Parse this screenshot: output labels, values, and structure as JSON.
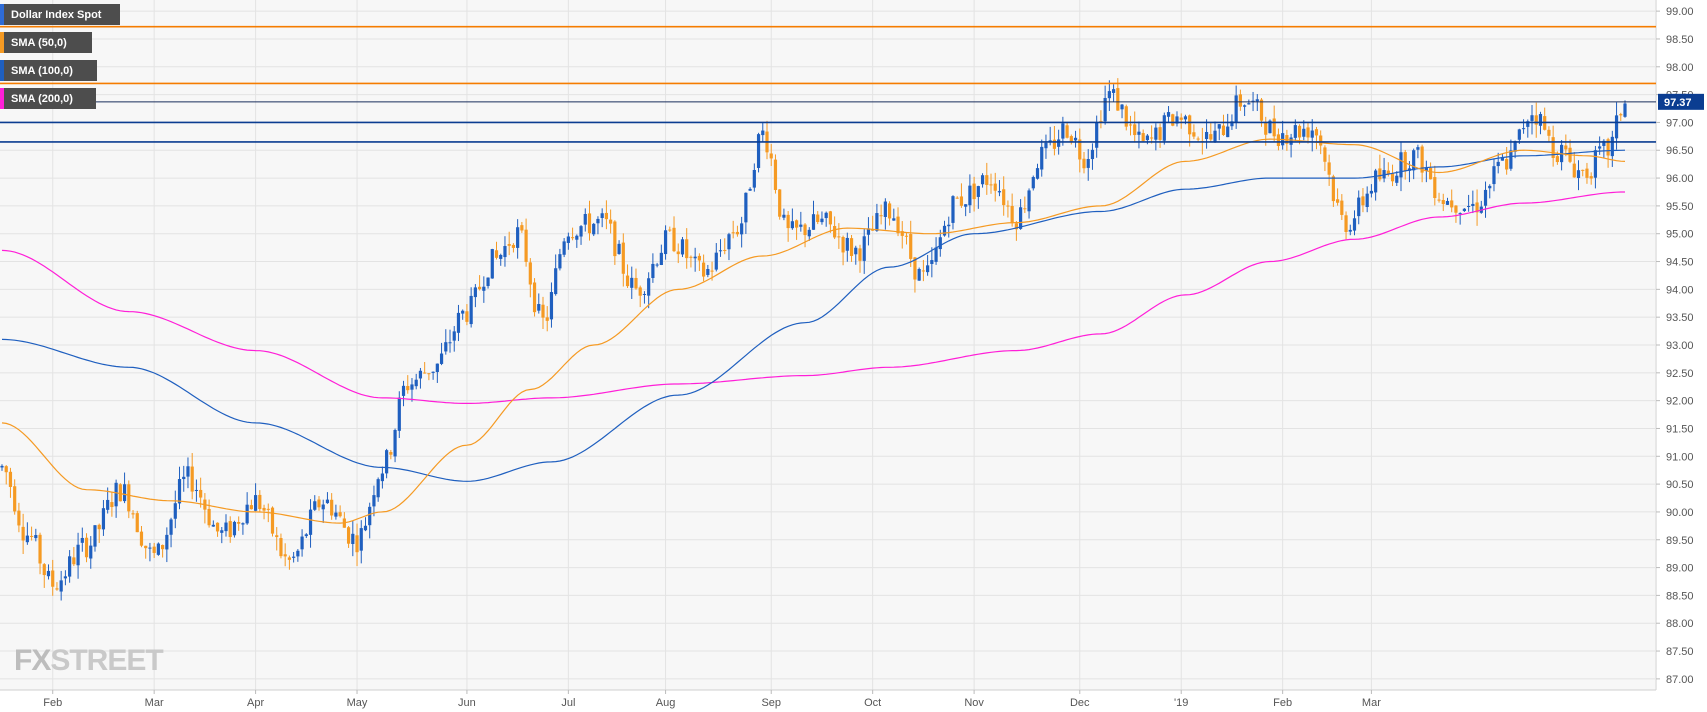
{
  "legend": {
    "series": [
      {
        "label": "Dollar Index Spot",
        "color": "#1f5fbf"
      },
      {
        "label": "SMA (50,0)",
        "color": "#f59a23"
      },
      {
        "label": "SMA (100,0)",
        "color": "#1f5fbf"
      },
      {
        "label": "SMA (200,0)",
        "color": "#ff1fd8"
      }
    ]
  },
  "watermark": {
    "fx": "FX",
    "street": "STREET"
  },
  "colors": {
    "bull": "#1f5fbf",
    "bear": "#f59a23",
    "sma50": "#f59a23",
    "sma100": "#1f5fbf",
    "sma200": "#ff1fd8",
    "hline_orange": "#f57c00",
    "hline_blue": "#0b3d91",
    "grid": "#e3e3e3",
    "plot_bg": "#f7f7f7",
    "price_label_bg": "#0b3d91"
  },
  "chart_data": {
    "type": "candlestick",
    "title": "",
    "ylim": [
      86.8,
      99.2
    ],
    "y_ticks": [
      "99.00",
      "98.50",
      "98.00",
      "97.50",
      "97.00",
      "96.50",
      "96.00",
      "95.50",
      "95.00",
      "94.50",
      "94.00",
      "93.50",
      "93.00",
      "92.50",
      "92.00",
      "91.50",
      "91.00",
      "90.50",
      "90.00",
      "89.50",
      "89.00",
      "88.50",
      "88.00",
      "87.50",
      "87.00"
    ],
    "x_ticks": [
      "Feb",
      "Mar",
      "Apr",
      "May",
      "Jun",
      "Jul",
      "Aug",
      "Sep",
      "Oct",
      "Nov",
      "Dec",
      "'19",
      "Feb",
      "Mar"
    ],
    "grid": true,
    "last_price": "97.37",
    "horizontal_levels": [
      {
        "value": 98.72,
        "color": "orange"
      },
      {
        "value": 97.7,
        "color": "orange"
      },
      {
        "value": 97.37,
        "color": "dark"
      },
      {
        "value": 97.0,
        "color": "blue"
      },
      {
        "value": 96.65,
        "color": "blue"
      }
    ],
    "price_anchors": [
      [
        0,
        90.8
      ],
      [
        6,
        89.6
      ],
      [
        12,
        88.7
      ],
      [
        20,
        89.4
      ],
      [
        28,
        90.4
      ],
      [
        36,
        89.2
      ],
      [
        44,
        90.6
      ],
      [
        52,
        89.6
      ],
      [
        60,
        90.2
      ],
      [
        68,
        89.1
      ],
      [
        76,
        90.2
      ],
      [
        84,
        89.5
      ],
      [
        90,
        90.8
      ],
      [
        96,
        92.3
      ],
      [
        102,
        92.6
      ],
      [
        110,
        93.6
      ],
      [
        116,
        94.5
      ],
      [
        122,
        95.0
      ],
      [
        128,
        93.4
      ],
      [
        134,
        95.1
      ],
      [
        142,
        95.2
      ],
      [
        150,
        94.0
      ],
      [
        158,
        94.9
      ],
      [
        166,
        94.3
      ],
      [
        174,
        95.1
      ],
      [
        180,
        96.8
      ],
      [
        186,
        95.0
      ],
      [
        194,
        95.2
      ],
      [
        202,
        94.7
      ],
      [
        210,
        95.4
      ],
      [
        218,
        94.2
      ],
      [
        226,
        95.6
      ],
      [
        234,
        96.0
      ],
      [
        240,
        95.3
      ],
      [
        246,
        96.4
      ],
      [
        252,
        96.9
      ],
      [
        256,
        96.4
      ],
      [
        262,
        97.5
      ],
      [
        270,
        96.6
      ],
      [
        278,
        97.1
      ],
      [
        286,
        96.7
      ],
      [
        294,
        97.4
      ],
      [
        302,
        96.8
      ],
      [
        310,
        96.9
      ],
      [
        318,
        95.2
      ],
      [
        326,
        96.0
      ],
      [
        334,
        96.4
      ],
      [
        342,
        95.6
      ],
      [
        348,
        95.5
      ],
      [
        356,
        96.3
      ],
      [
        362,
        97.2
      ],
      [
        368,
        96.5
      ],
      [
        374,
        96.1
      ],
      [
        380,
        96.5
      ],
      [
        384,
        97.37
      ]
    ],
    "sma50_anchors": [
      [
        0,
        91.6
      ],
      [
        20,
        90.4
      ],
      [
        40,
        90.2
      ],
      [
        60,
        90.0
      ],
      [
        80,
        89.8
      ],
      [
        90,
        90.0
      ],
      [
        110,
        91.2
      ],
      [
        125,
        92.2
      ],
      [
        140,
        93.0
      ],
      [
        160,
        94.0
      ],
      [
        180,
        94.6
      ],
      [
        200,
        95.1
      ],
      [
        220,
        95.0
      ],
      [
        240,
        95.2
      ],
      [
        260,
        95.5
      ],
      [
        280,
        96.3
      ],
      [
        300,
        96.7
      ],
      [
        320,
        96.6
      ],
      [
        340,
        96.1
      ],
      [
        360,
        96.5
      ],
      [
        375,
        96.4
      ],
      [
        384,
        96.3
      ]
    ],
    "sma100_anchors": [
      [
        0,
        93.1
      ],
      [
        30,
        92.6
      ],
      [
        60,
        91.6
      ],
      [
        90,
        90.8
      ],
      [
        110,
        90.55
      ],
      [
        130,
        90.9
      ],
      [
        160,
        92.1
      ],
      [
        190,
        93.4
      ],
      [
        210,
        94.4
      ],
      [
        230,
        95.0
      ],
      [
        260,
        95.4
      ],
      [
        280,
        95.8
      ],
      [
        300,
        96.0
      ],
      [
        320,
        96.0
      ],
      [
        340,
        96.2
      ],
      [
        360,
        96.4
      ],
      [
        384,
        96.5
      ]
    ],
    "sma200_anchors": [
      [
        0,
        94.7
      ],
      [
        30,
        93.6
      ],
      [
        60,
        92.9
      ],
      [
        90,
        92.05
      ],
      [
        110,
        91.95
      ],
      [
        130,
        92.05
      ],
      [
        160,
        92.3
      ],
      [
        190,
        92.45
      ],
      [
        210,
        92.6
      ],
      [
        240,
        92.9
      ],
      [
        260,
        93.2
      ],
      [
        280,
        93.9
      ],
      [
        300,
        94.5
      ],
      [
        320,
        94.9
      ],
      [
        340,
        95.3
      ],
      [
        360,
        95.55
      ],
      [
        384,
        95.75
      ]
    ]
  }
}
